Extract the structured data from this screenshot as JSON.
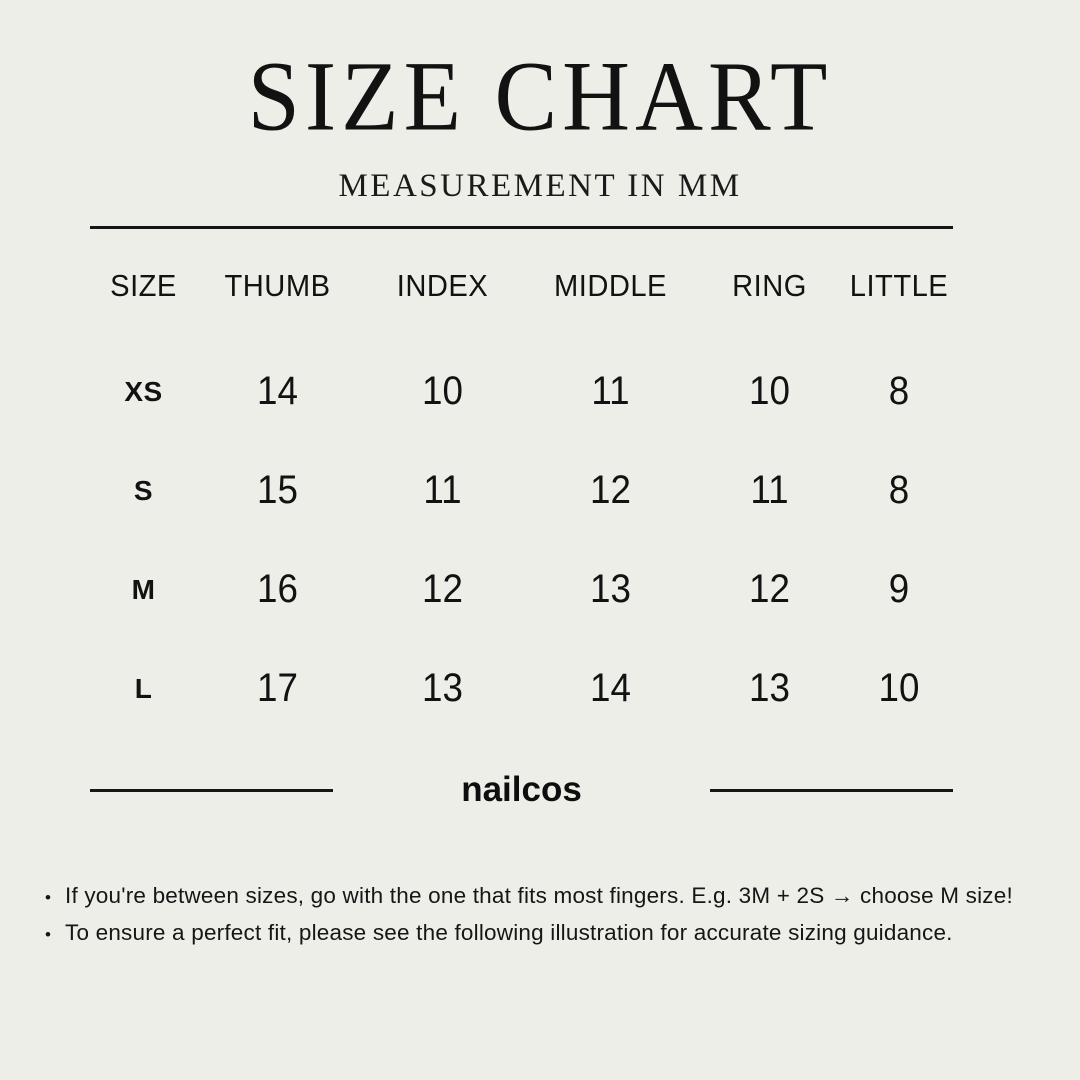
{
  "header": {
    "title": "SIZE CHART",
    "subtitle": "MEASUREMENT IN MM"
  },
  "chart_data": {
    "type": "table",
    "title": "SIZE CHART",
    "subtitle": "MEASUREMENT IN MM",
    "unit": "mm",
    "columns": [
      "SIZE",
      "THUMB",
      "INDEX",
      "MIDDLE",
      "RING",
      "LITTLE"
    ],
    "rows": [
      {
        "size": "XS",
        "values": [
          14,
          10,
          11,
          10,
          8
        ]
      },
      {
        "size": "S",
        "values": [
          15,
          11,
          12,
          11,
          8
        ]
      },
      {
        "size": "M",
        "values": [
          16,
          12,
          13,
          12,
          9
        ]
      },
      {
        "size": "L",
        "values": [
          17,
          13,
          14,
          13,
          10
        ]
      }
    ]
  },
  "footer": {
    "brand": "nailcos",
    "bullet_glyph": "•"
  },
  "notes": {
    "items": [
      "If you're between sizes, go with the one that fits most fingers. E.g. 3M + 2S → choose M size!",
      "To ensure a perfect fit, please see the following illustration for accurate sizing guidance."
    ]
  },
  "colors": {
    "background": "#EEEEE8",
    "text": "#121212"
  }
}
